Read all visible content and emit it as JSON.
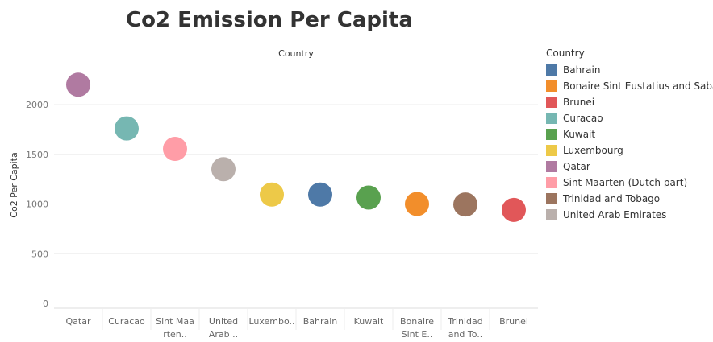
{
  "chart_data": {
    "type": "scatter",
    "title": "Co2 Emission Per Capita",
    "column_header": "Country",
    "ylabel": "Co2 Per Capita",
    "ylim": [
      0,
      2350
    ],
    "yticks": [
      0,
      500,
      1000,
      1500,
      2000
    ],
    "grid": true,
    "legend_position": "right",
    "legend_title": "Country",
    "categories": [
      "Qatar",
      "Curacao",
      "Sint Maarten (Dutch part)",
      "United Arab Emirates",
      "Luxembourg",
      "Bahrain",
      "Kuwait",
      "Bonaire Sint Eustatius and Saba",
      "Trinidad and Tobago",
      "Brunei"
    ],
    "tick_labels": [
      [
        "Qatar"
      ],
      [
        "Curacao"
      ],
      [
        "Sint Maa",
        "rten.."
      ],
      [
        "United",
        "Arab .."
      ],
      [
        "Luxembo.."
      ],
      [
        "Bahrain"
      ],
      [
        "Kuwait"
      ],
      [
        "Bonaire",
        "Sint E.."
      ],
      [
        "Trinidad",
        "and To.."
      ],
      [
        "Brunei"
      ]
    ],
    "values": [
      2200,
      1760,
      1555,
      1350,
      1095,
      1095,
      1065,
      1000,
      995,
      940
    ],
    "colors": [
      "#b07aa1",
      "#76b7b2",
      "#ff9da7",
      "#bab0ac",
      "#edc948",
      "#4e79a7",
      "#59a14f",
      "#f28e2b",
      "#9c755f",
      "#e15759"
    ],
    "legend": [
      {
        "label": "Bahrain",
        "color": "#4e79a7"
      },
      {
        "label": "Bonaire Sint Eustatius and Saba",
        "color": "#f28e2b"
      },
      {
        "label": "Brunei",
        "color": "#e15759"
      },
      {
        "label": "Curacao",
        "color": "#76b7b2"
      },
      {
        "label": "Kuwait",
        "color": "#59a14f"
      },
      {
        "label": "Luxembourg",
        "color": "#edc948"
      },
      {
        "label": "Qatar",
        "color": "#b07aa1"
      },
      {
        "label": "Sint Maarten (Dutch part)",
        "color": "#ff9da7"
      },
      {
        "label": "Trinidad and Tobago",
        "color": "#9c755f"
      },
      {
        "label": "United Arab Emirates",
        "color": "#bab0ac"
      }
    ]
  }
}
